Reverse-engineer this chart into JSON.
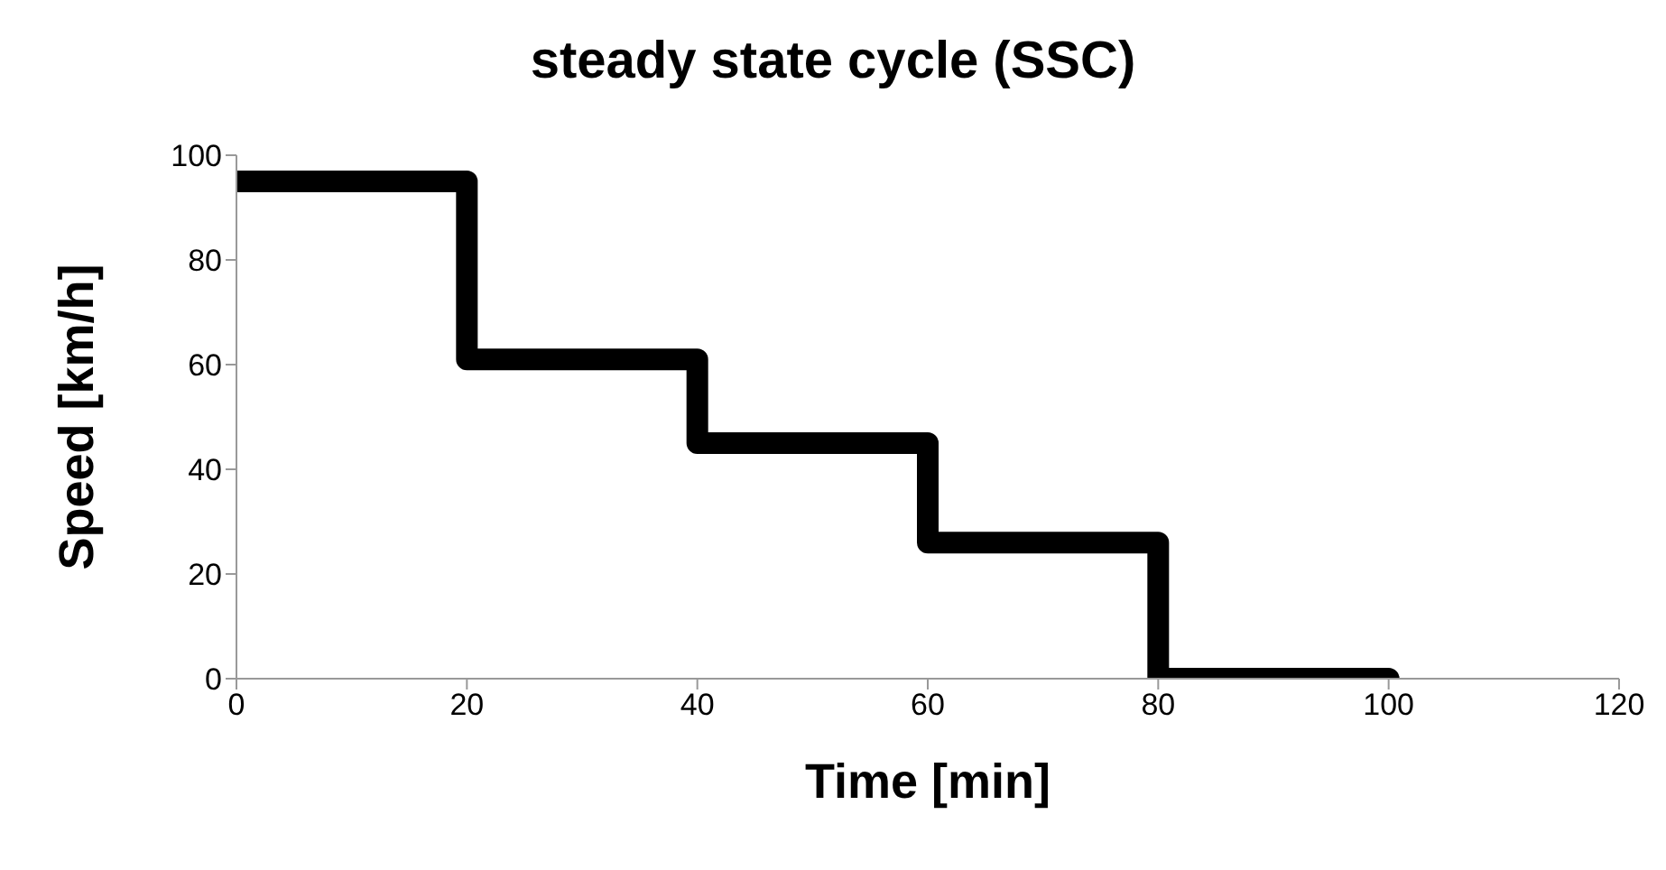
{
  "chart_data": {
    "type": "step",
    "title": "steady state cycle (SSC)",
    "xlabel": "Time [min]",
    "ylabel": "Speed [km/h]",
    "x": [
      0,
      20,
      40,
      60,
      80,
      100
    ],
    "series": [
      {
        "color": "#000000",
        "values": [
          95,
          61,
          45,
          26,
          0,
          0
        ]
      }
    ],
    "xlim": [
      0,
      120
    ],
    "xticks": [
      0,
      20,
      40,
      60,
      80,
      100,
      120
    ],
    "ylim": [
      0,
      100
    ],
    "yticks": [
      0,
      20,
      40,
      60,
      80,
      100
    ],
    "grid": false,
    "legend": false
  }
}
